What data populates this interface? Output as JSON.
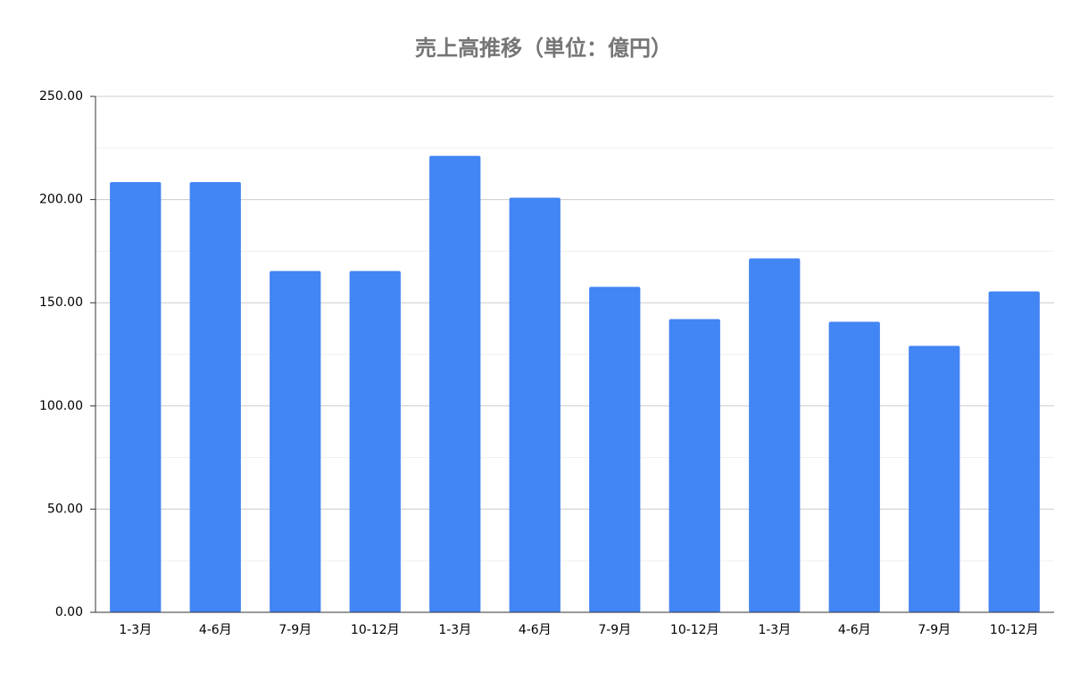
{
  "chart_data": {
    "type": "bar",
    "title": "売上高推移（単位：億円）",
    "categories": [
      "1-3月",
      "4-6月",
      "7-9月",
      "10-12月",
      "1-3月",
      "4-6月",
      "7-9月",
      "10-12月",
      "1-3月",
      "4-6月",
      "7-9月",
      "10-12月"
    ],
    "values": [
      208.5,
      208.5,
      165.4,
      165.4,
      221.2,
      200.9,
      157.7,
      142.1,
      171.5,
      140.8,
      129.1,
      155.5
    ],
    "color": "#4285f4",
    "ylim": [
      0,
      250
    ],
    "yticks": [
      {
        "value": 0,
        "label": "0.00"
      },
      {
        "value": 50,
        "label": "50.00"
      },
      {
        "value": 100,
        "label": "100.00"
      },
      {
        "value": 150,
        "label": "150.00"
      },
      {
        "value": 200,
        "label": "200.00"
      },
      {
        "value": 250,
        "label": "250.00"
      }
    ],
    "minor_yticks": [
      25,
      75,
      125,
      175,
      225
    ],
    "grid": true
  }
}
